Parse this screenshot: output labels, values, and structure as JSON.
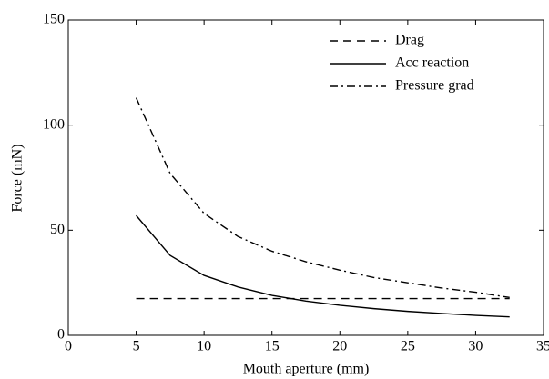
{
  "chart_data": {
    "type": "line",
    "xlabel": "Mouth aperture (mm)",
    "ylabel": "Force (mN)",
    "x": [
      5,
      7.5,
      10,
      12.5,
      15,
      17.5,
      20,
      22.5,
      25,
      27.5,
      30,
      32.5
    ],
    "series": [
      {
        "name": "Drag",
        "color": "#000000",
        "dash": "dashed",
        "values": [
          17.5,
          17.5,
          17.5,
          17.5,
          17.5,
          17.5,
          17.5,
          17.5,
          17.5,
          17.5,
          17.5,
          17.5
        ]
      },
      {
        "name": "Acc reaction",
        "color": "#000000",
        "dash": "solid",
        "values": [
          57,
          38,
          28.5,
          23,
          19,
          16.3,
          14.3,
          12.7,
          11.4,
          10.4,
          9.5,
          8.8
        ]
      },
      {
        "name": "Pressure grad",
        "color": "#000000",
        "dash": "dashdot",
        "values": [
          113,
          77,
          58,
          47,
          40,
          35,
          31,
          27.5,
          25,
          22.5,
          20.5,
          18
        ]
      }
    ],
    "xlim": [
      0,
      35
    ],
    "xticks": [
      0,
      5,
      10,
      15,
      20,
      25,
      30,
      35
    ],
    "ylim": [
      0,
      150
    ],
    "yticks": [
      0,
      50,
      100,
      150
    ],
    "legend": "upper right",
    "grid": false
  }
}
